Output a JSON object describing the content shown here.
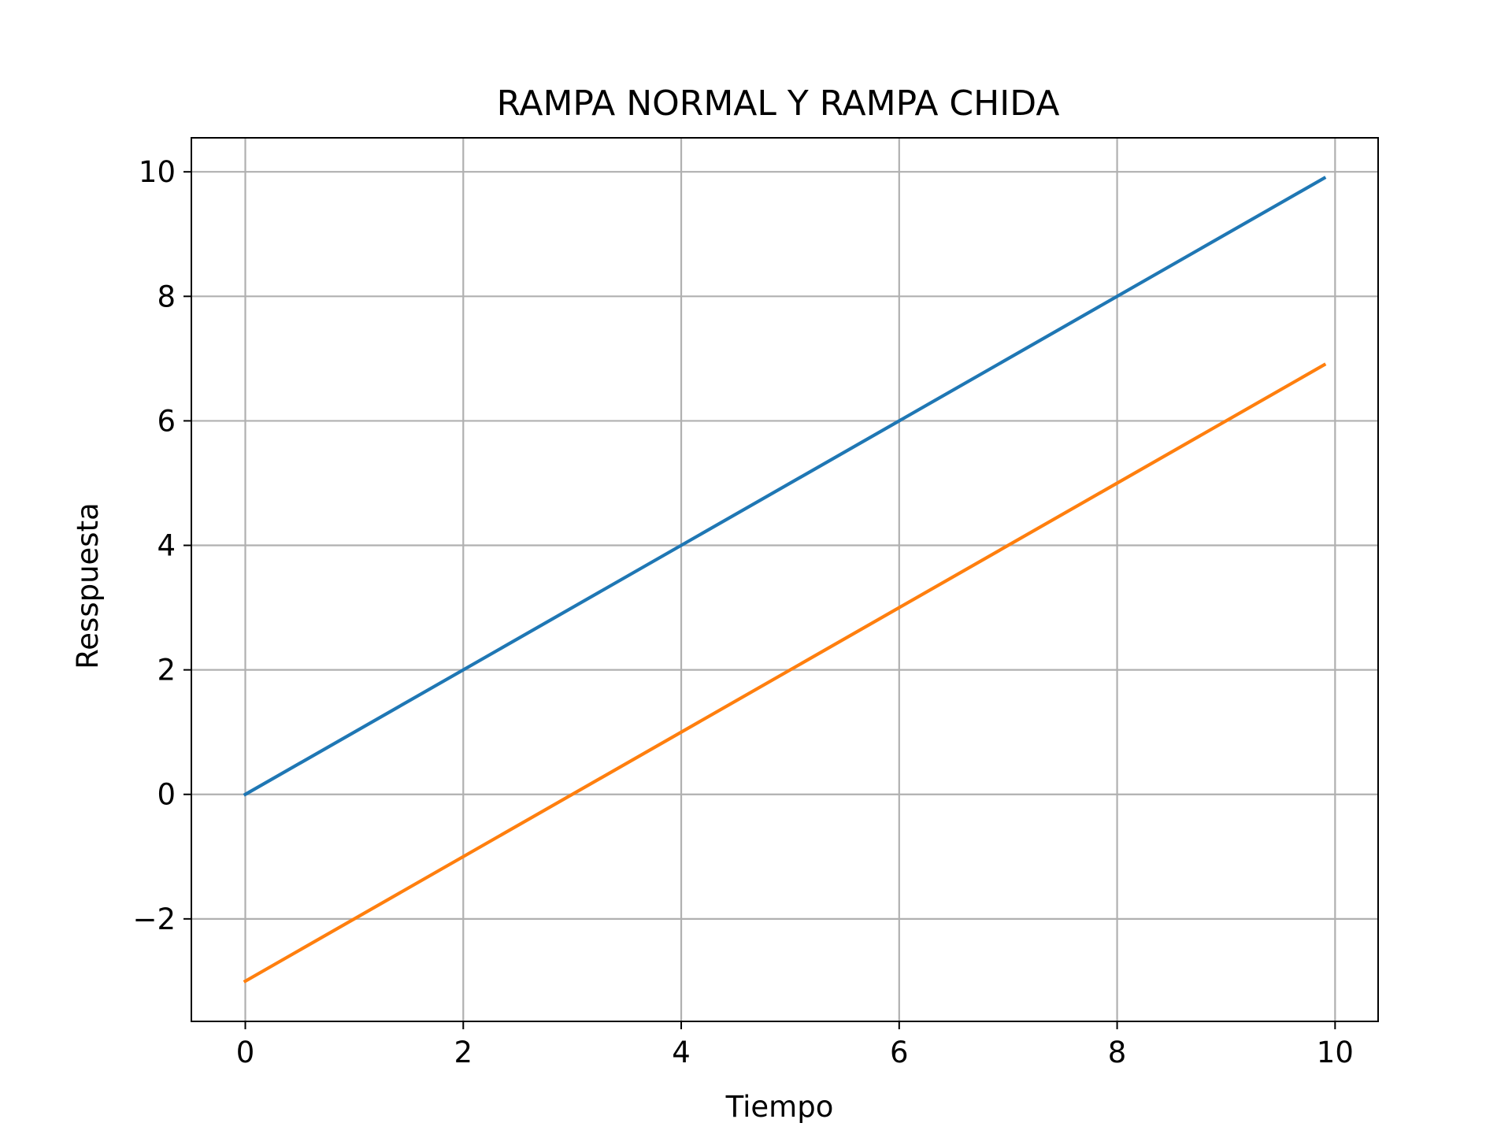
{
  "chart_data": {
    "type": "line",
    "title": "RAMPA NORMAL Y RAMPA CHIDA",
    "xlabel": "Tiempo",
    "ylabel": "Resspuesta",
    "xlim": [
      -0.495,
      10.395
    ],
    "ylim": [
      -3.6465,
      10.5465
    ],
    "xticks": [
      0,
      2,
      4,
      6,
      8,
      10
    ],
    "xtick_labels": [
      "0",
      "2",
      "4",
      "6",
      "8",
      "10"
    ],
    "yticks": [
      -2,
      0,
      2,
      4,
      6,
      8,
      10
    ],
    "ytick_labels": [
      "−2",
      "0",
      "2",
      "4",
      "6",
      "8",
      "10"
    ],
    "grid": true,
    "series": [
      {
        "x": [
          0,
          9.9
        ],
        "y": [
          0,
          9.9
        ],
        "color": "#1f77b4"
      },
      {
        "x": [
          0,
          9.9
        ],
        "y": [
          -3,
          6.9
        ],
        "color": "#ff7f0e"
      }
    ]
  }
}
